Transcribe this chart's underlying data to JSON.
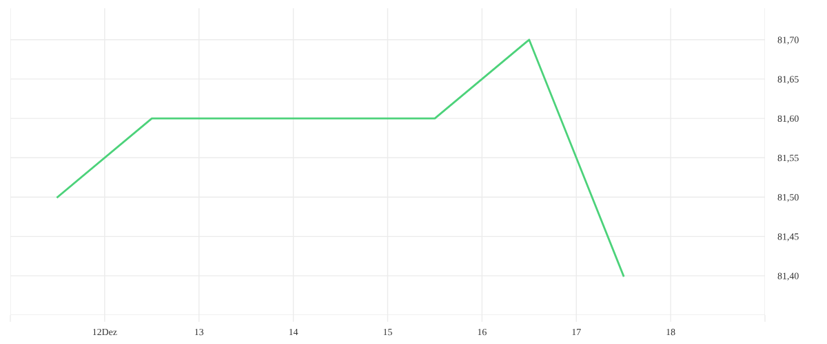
{
  "chart_data": {
    "type": "line",
    "x": [
      11.5,
      12.5,
      13.5,
      14.5,
      15.5,
      16.5,
      17.5
    ],
    "values": [
      81.5,
      81.6,
      81.6,
      81.6,
      81.6,
      81.7,
      81.4
    ],
    "color": "#4cd27a",
    "xlim": [
      11,
      19
    ],
    "xticks": [
      {
        "value": 11,
        "label": null
      },
      {
        "value": 12,
        "label": "12Dez"
      },
      13,
      14,
      15,
      16,
      17,
      18,
      {
        "value": 19,
        "label": null
      }
    ],
    "ylim": [
      81.35,
      81.74
    ],
    "yticks": [
      {
        "value": 81.35,
        "label": null
      },
      {
        "value": 81.4,
        "label": "81,40"
      },
      {
        "value": 81.45,
        "label": "81,45"
      },
      {
        "value": 81.5,
        "label": "81,50"
      },
      {
        "value": 81.55,
        "label": "81,55"
      },
      {
        "value": 81.6,
        "label": "81,60"
      },
      {
        "value": 81.65,
        "label": "81,65"
      },
      {
        "value": 81.7,
        "label": "81,70"
      }
    ],
    "grid": true,
    "line_style": "solid"
  }
}
